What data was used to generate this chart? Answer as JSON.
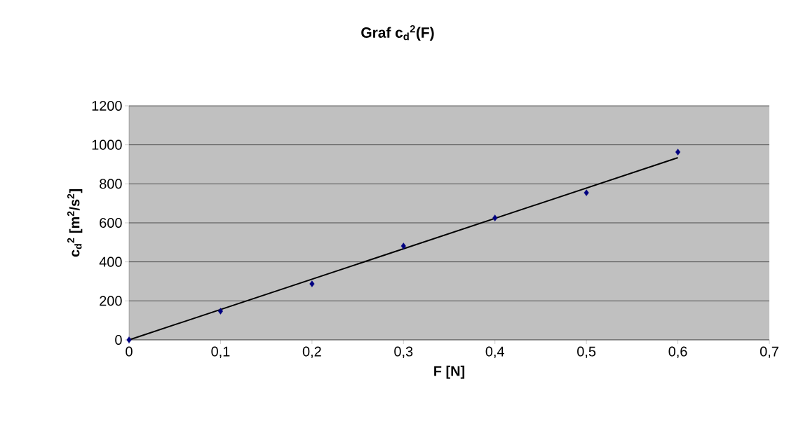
{
  "chart_data": {
    "type": "scatter",
    "title": "Graf c$_{d}$$^{2}$(F)",
    "xlabel": "F [N]",
    "ylabel": "c$_{d}$$^{2}$ [m$^{2}$/s$^{2}$]",
    "series": [
      {
        "color": "#000080",
        "marker": "diamond",
        "x": [
          0,
          0.1,
          0.2,
          0.3,
          0.4,
          0.5,
          0.6
        ],
        "values": [
          0,
          147,
          287,
          481,
          625,
          754,
          963
        ]
      },
      {
        "type": "line",
        "color": "#000000",
        "marker": "none",
        "line_style": "solid",
        "x": [
          0,
          0.6
        ],
        "values": [
          0,
          934
        ]
      }
    ],
    "xlim": [
      0,
      0.7
    ],
    "xticks": [
      0,
      {
        "value": 0.1,
        "label": "0,1"
      },
      {
        "value": 0.2,
        "label": "0,2"
      },
      {
        "value": 0.3,
        "label": "0,3"
      },
      {
        "value": 0.4,
        "label": "0,4"
      },
      {
        "value": 0.5,
        "label": "0,5"
      },
      {
        "value": 0.6,
        "label": "0,6"
      },
      {
        "value": 0.7,
        "label": "0,7"
      }
    ],
    "ylim": [
      0,
      1200
    ],
    "yticks": [
      0,
      200,
      400,
      600,
      800,
      1000,
      1200
    ],
    "grid": "y"
  }
}
